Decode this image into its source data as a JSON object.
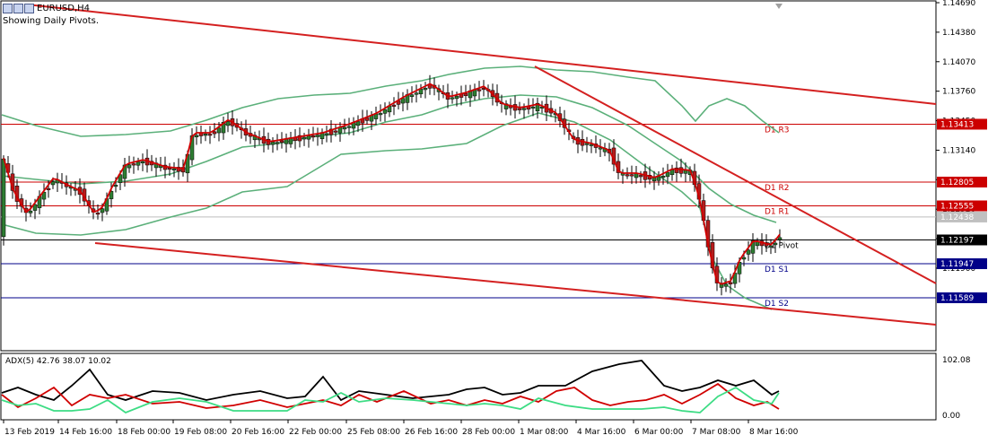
{
  "window": {
    "symbol_timeframe": "EURUSD,H4",
    "subtitle": "Showing Daily Pivots."
  },
  "price_axis": {
    "ticks": [
      "1.14690",
      "1.14380",
      "1.14070",
      "1.13760",
      "1.13450",
      "1.13140",
      "1.12830",
      "1.12520",
      "1.12210",
      "1.11900"
    ]
  },
  "pivots": [
    {
      "key": "r3",
      "label": "D1 R3",
      "value": "1.13413",
      "color": "#cc0000"
    },
    {
      "key": "r2",
      "label": "D1 R2",
      "value": "1.12805",
      "color": "#cc0000"
    },
    {
      "key": "r1",
      "label": "D1 R1",
      "value": "1.12555",
      "color": "#cc0000"
    },
    {
      "key": "pivot",
      "label": "D1 Pivot",
      "value": "1.12197",
      "color": "#000000"
    },
    {
      "key": "s1",
      "label": "D1 S1",
      "value": "1.11947",
      "color": "#000088"
    },
    {
      "key": "s2",
      "label": "D1 S2",
      "value": "1.11589",
      "color": "#000088"
    }
  ],
  "current_price": "1.12438",
  "indicator": {
    "label": "ADX(5) 42.76 38.07 10.02",
    "axis_top": "102.08",
    "axis_bottom": "0.00"
  },
  "time_axis": [
    "13 Feb 2019",
    "14 Feb 16:00",
    "18 Feb 00:00",
    "19 Feb 08:00",
    "20 Feb 16:00",
    "22 Feb 00:00",
    "25 Feb 08:00",
    "26 Feb 16:00",
    "28 Feb 00:00",
    "1 Mar 08:00",
    "4 Mar 16:00",
    "6 Mar 00:00",
    "7 Mar 08:00",
    "8 Mar 16:00"
  ],
  "colors": {
    "bull": "#2e7d32",
    "bear": "#b71c1c",
    "bollinger": "#5bb07a",
    "ma": "#d00000",
    "trendline": "#d42020",
    "adx": "#000000",
    "di_plus": "#3ddc84",
    "di_minus": "#d00000"
  }
}
